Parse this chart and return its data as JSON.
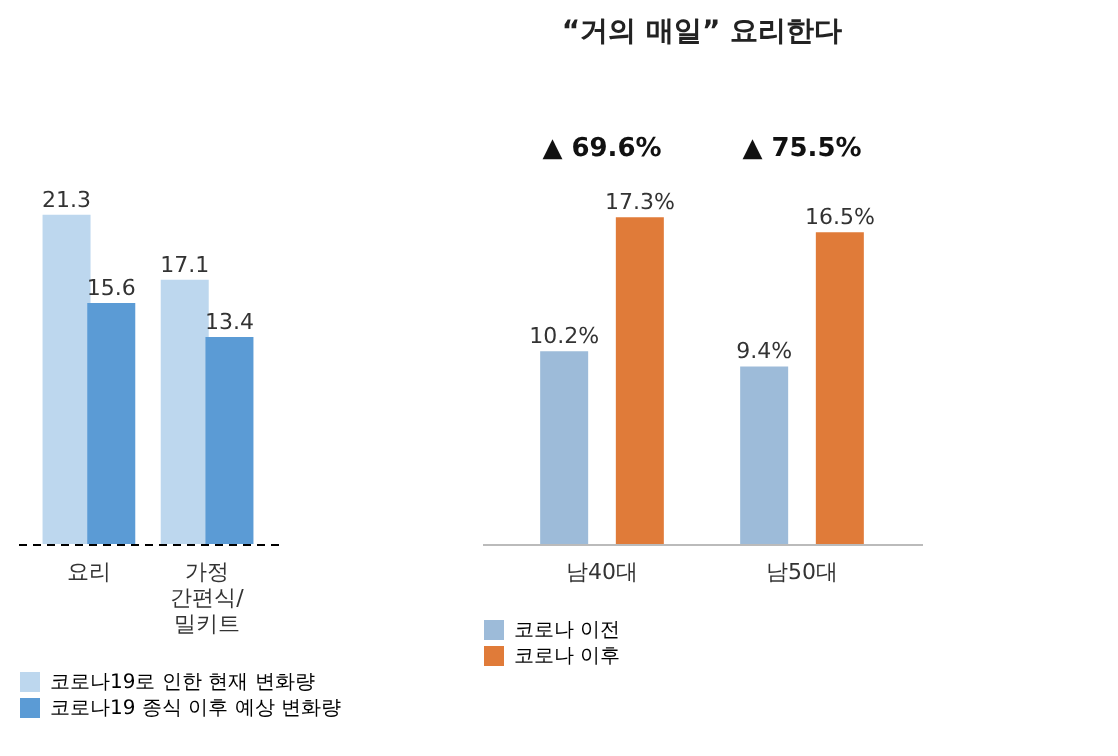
{
  "chart_data": [
    {
      "type": "bar",
      "categories": [
        "요리",
        "가정 간편식/ 밀키트"
      ],
      "series": [
        {
          "name": "코로나19로 인한 현재 변화량",
          "color": "#bdd7ee",
          "values": [
            21.3,
            17.1
          ]
        },
        {
          "name": "코로나19 종식 이후 예상 변화량",
          "color": "#5b9bd5",
          "values": [
            15.6,
            13.4
          ]
        }
      ],
      "data_labels": true,
      "legend": "bottom"
    },
    {
      "type": "bar",
      "title": "“거의 매일” 요리한다",
      "categories": [
        "남40대",
        "남50대"
      ],
      "series": [
        {
          "name": "코로나 이전",
          "color": "#9dbbd9",
          "values": [
            10.2,
            9.4
          ],
          "value_labels": [
            "10.2%",
            "9.4%"
          ]
        },
        {
          "name": "코로나 이후",
          "color": "#e07b39",
          "values": [
            17.3,
            16.5
          ],
          "value_labels": [
            "17.3%",
            "16.5%"
          ]
        }
      ],
      "annotations": [
        "▲ 69.6%",
        "▲ 75.5%"
      ],
      "legend": "bottom"
    }
  ]
}
